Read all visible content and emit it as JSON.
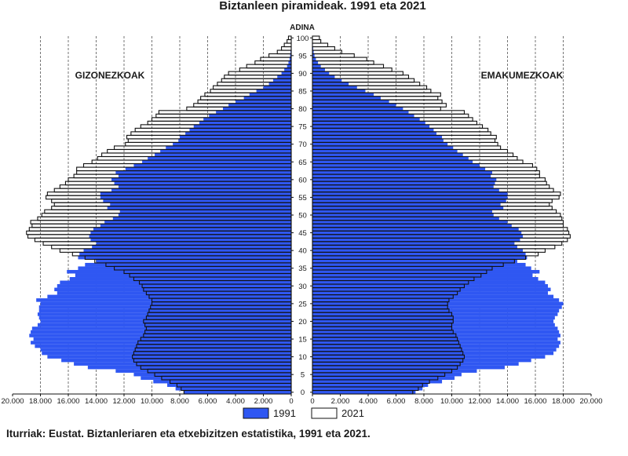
{
  "chart_data": {
    "type": "bar",
    "subtype": "population-pyramid",
    "title": "Biztanleen piramideak. 1991 eta 2021",
    "center_axis_label": "ADINA",
    "left_panel_label": "GIZONEZKOAK",
    "right_panel_label": "EMAKUMEZKOAK",
    "x_tick_labels_left": [
      "20.000",
      "18.000",
      "16.000",
      "14.000",
      "12.000",
      "10.000",
      "8.000",
      "6.000",
      "4.000",
      "2.000",
      "0"
    ],
    "x_tick_labels_right": [
      "0",
      "2.000",
      "4.000",
      "6.000",
      "8.000",
      "10.000",
      "12.000",
      "14.000",
      "16.000",
      "18.000",
      "20.000"
    ],
    "xlim": [
      0,
      20000
    ],
    "y_ticks": [
      0,
      5,
      10,
      15,
      20,
      25,
      30,
      35,
      40,
      45,
      50,
      55,
      60,
      65,
      70,
      75,
      80,
      85,
      90,
      95,
      100
    ],
    "ylim": [
      0,
      100
    ],
    "grid": "vertical dashed",
    "legend_position": "bottom",
    "colors": {
      "s1991": "#2f57f2",
      "s2021": "#ffffff",
      "outline": "#111111"
    },
    "series": [
      {
        "name": "1991",
        "style": "filled",
        "men_by_age": [
          7700,
          8300,
          8900,
          9900,
          10800,
          11300,
          12600,
          14600,
          15600,
          16500,
          17500,
          17900,
          18000,
          18400,
          18700,
          18500,
          18800,
          18700,
          18600,
          18200,
          18000,
          18100,
          18200,
          18100,
          18100,
          18000,
          18300,
          17500,
          16800,
          17000,
          16800,
          16600,
          15900,
          15500,
          16100,
          15300,
          14800,
          14000,
          15300,
          15200,
          14900,
          14300,
          14000,
          14400,
          14500,
          14400,
          14200,
          13700,
          13400,
          12800,
          12400,
          12300,
          13200,
          13000,
          13500,
          13700,
          13700,
          12900,
          12400,
          12700,
          12900,
          12400,
          12600,
          11900,
          11300,
          10700,
          10300,
          9800,
          9400,
          9000,
          8500,
          8100,
          8000,
          7600,
          7300,
          7000,
          6600,
          6300,
          5900,
          5400,
          4900,
          4500,
          4000,
          3400,
          3000,
          2500,
          2000,
          1600,
          1300,
          1000,
          700,
          500,
          300,
          200,
          120,
          80,
          50,
          30,
          20,
          10,
          5
        ],
        "women_by_age": [
          7400,
          7900,
          8300,
          9300,
          10200,
          10700,
          11800,
          13800,
          14800,
          15700,
          16700,
          17300,
          17500,
          17700,
          17800,
          17600,
          17800,
          17700,
          17600,
          17400,
          17300,
          17400,
          17600,
          17700,
          17900,
          18000,
          17700,
          17300,
          16900,
          17100,
          16900,
          16700,
          16200,
          15800,
          16300,
          15700,
          15300,
          14700,
          15400,
          15300,
          15100,
          14700,
          14500,
          14900,
          15100,
          15000,
          14800,
          14300,
          14000,
          13400,
          13000,
          12900,
          13700,
          13500,
          13900,
          14000,
          14000,
          13400,
          13000,
          13100,
          13200,
          12800,
          12900,
          12400,
          12000,
          11500,
          11200,
          10800,
          10400,
          10100,
          9700,
          9400,
          9300,
          8900,
          8700,
          8400,
          8100,
          7700,
          7300,
          6900,
          6500,
          6000,
          5500,
          4900,
          4400,
          3800,
          3200,
          2600,
          2100,
          1600,
          1200,
          900,
          600,
          400,
          250,
          150,
          90,
          50,
          30,
          15,
          8
        ]
      },
      {
        "name": "2021",
        "style": "outline",
        "men_by_age": [
          7700,
          7900,
          8200,
          8700,
          9300,
          9800,
          10300,
          10800,
          11100,
          11300,
          11400,
          11300,
          11200,
          11100,
          11000,
          10800,
          10600,
          10500,
          10400,
          10500,
          10600,
          10400,
          10300,
          10200,
          10100,
          10000,
          10000,
          10200,
          10400,
          10600,
          10700,
          10900,
          11300,
          11600,
          12000,
          12700,
          13300,
          14100,
          14800,
          15700,
          16600,
          17200,
          17800,
          18400,
          18900,
          19000,
          18800,
          18600,
          18700,
          18200,
          17900,
          17700,
          17200,
          17000,
          17200,
          17600,
          17500,
          17000,
          16600,
          16200,
          16000,
          15600,
          15400,
          15400,
          14900,
          14300,
          13900,
          13600,
          13200,
          12700,
          11900,
          11700,
          11800,
          11500,
          11200,
          10800,
          10300,
          10000,
          9700,
          9500,
          7500,
          7000,
          6700,
          6500,
          6200,
          5800,
          5600,
          5300,
          5000,
          4800,
          4500,
          3700,
          3200,
          2600,
          2200,
          1600,
          1000,
          700,
          500,
          300,
          200
        ],
        "women_by_age": [
          7200,
          7600,
          7900,
          8400,
          9000,
          9500,
          10000,
          10400,
          10600,
          10800,
          10900,
          10800,
          10700,
          10600,
          10500,
          10400,
          10300,
          10100,
          10000,
          10000,
          10100,
          10100,
          10000,
          9800,
          9700,
          9700,
          9800,
          10100,
          10400,
          10600,
          10900,
          11200,
          11600,
          12100,
          12500,
          12900,
          13700,
          14500,
          15300,
          16200,
          16700,
          17400,
          17900,
          18300,
          18500,
          18400,
          18300,
          18000,
          18000,
          17900,
          17800,
          17500,
          17200,
          17000,
          17200,
          17700,
          17800,
          17300,
          17000,
          16800,
          16700,
          16300,
          16300,
          16100,
          15800,
          15100,
          14700,
          14400,
          14000,
          13500,
          13300,
          13100,
          13200,
          12800,
          12600,
          12200,
          11800,
          11500,
          11200,
          10900,
          9200,
          9600,
          9300,
          9000,
          9200,
          8500,
          8200,
          7700,
          7300,
          6900,
          6500,
          5700,
          5100,
          4400,
          3900,
          3000,
          2100,
          1600,
          1100,
          600,
          500
        ]
      }
    ]
  },
  "legend": [
    {
      "label": "1991",
      "swatch": "filled"
    },
    {
      "label": "2021",
      "swatch": "outline"
    }
  ],
  "source_text": "Iturriak: Eustat. Biztanleriaren eta etxebizitzen estatistika, 1991 eta 2021."
}
